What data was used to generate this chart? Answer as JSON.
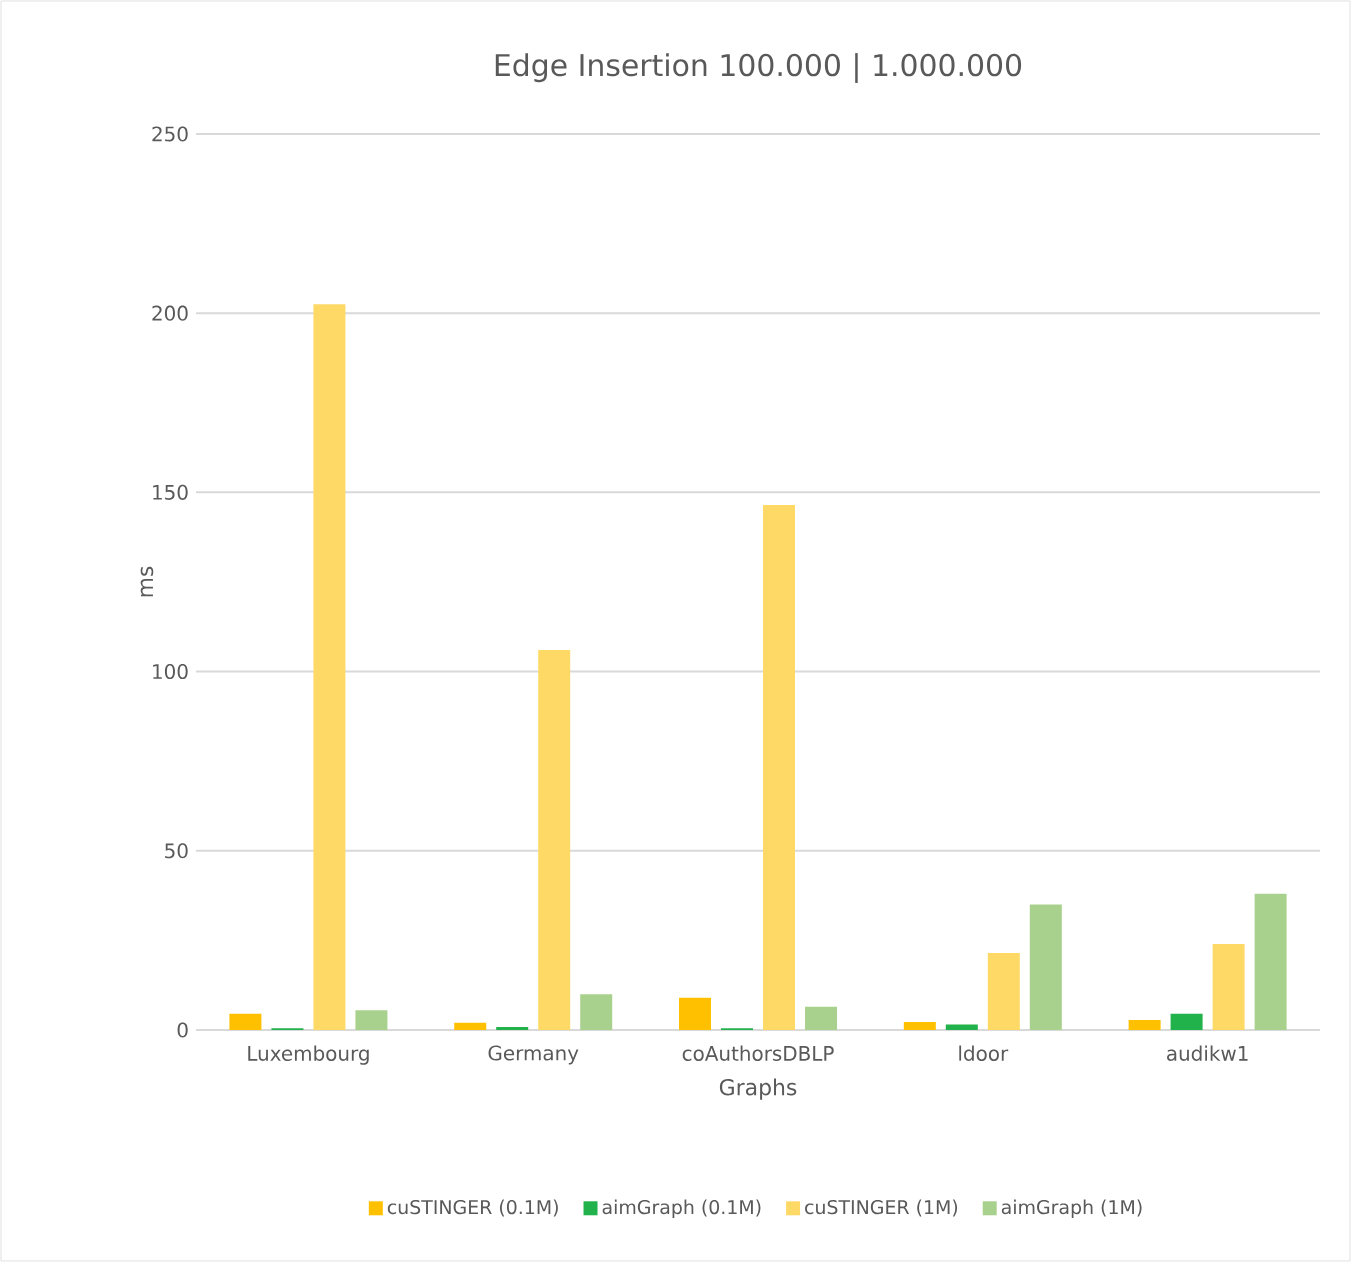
{
  "chart_data": {
    "type": "bar",
    "title": "Edge Insertion 100.000 | 1.000.000",
    "xlabel": "Graphs",
    "ylabel": "ms",
    "categories": [
      "Luxembourg",
      "Germany",
      "coAuthorsDBLP",
      "ldoor",
      "audikw1"
    ],
    "series": [
      {
        "name": "cuSTINGER (0.1M)",
        "color": "#ffc000",
        "values": [
          4.5,
          2,
          9,
          2.2,
          2.8
        ]
      },
      {
        "name": "aimGraph (0.1M)",
        "color": "#21b24b",
        "values": [
          0.5,
          0.8,
          0.5,
          1.5,
          4.5
        ]
      },
      {
        "name": "cuSTINGER (1M)",
        "color": "#ffd966",
        "values": [
          202.5,
          106,
          146.5,
          21.5,
          24
        ]
      },
      {
        "name": "aimGraph (1M)",
        "color": "#a9d18e",
        "values": [
          5.5,
          10,
          6.5,
          35,
          38
        ]
      }
    ],
    "ylim": [
      0,
      250
    ],
    "yticks": [
      0,
      50,
      100,
      150,
      200,
      250
    ],
    "grid": "y",
    "legend": "bottom"
  }
}
